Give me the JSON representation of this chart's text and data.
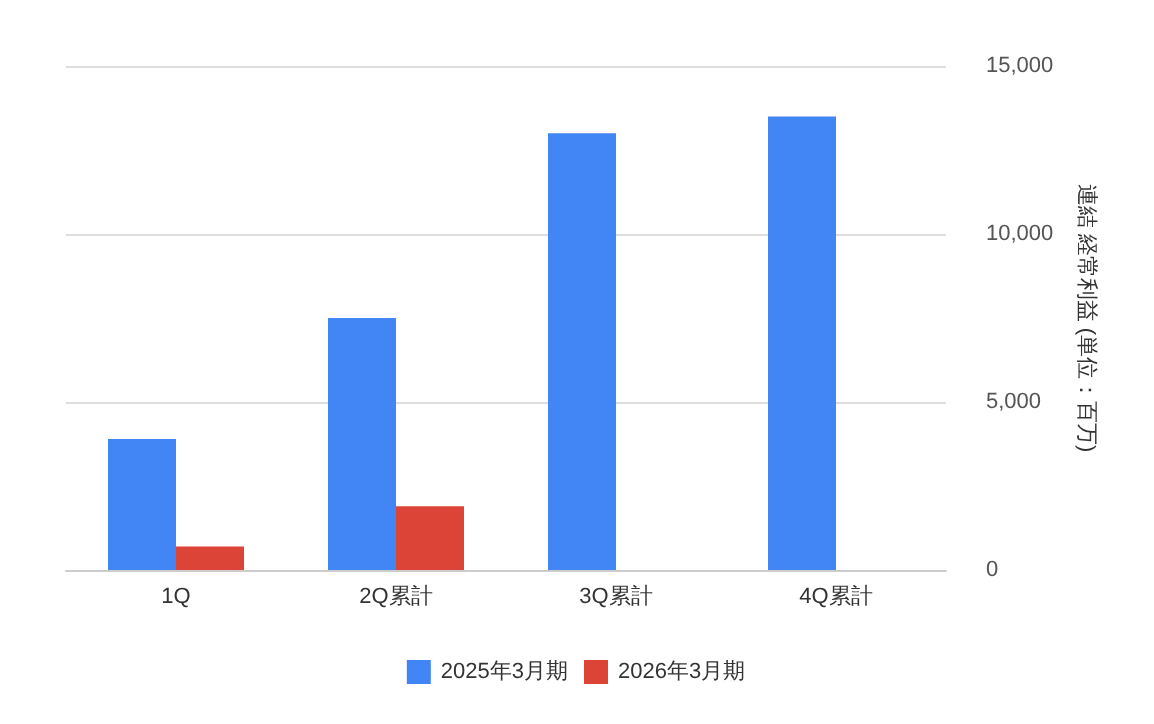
{
  "chart_data": {
    "type": "bar",
    "ylabel": "連結 経常利益 (単位：百万)",
    "categories": [
      "1Q",
      "2Q累計",
      "3Q累計",
      "4Q累計"
    ],
    "series": [
      {
        "name": "2025年3月期",
        "color": "#4285f4",
        "values": [
          3900,
          7500,
          13000,
          13500
        ]
      },
      {
        "name": "2026年3月期",
        "color": "#db4437",
        "values": [
          700,
          1900,
          null,
          null
        ]
      }
    ],
    "ylim": [
      0,
      15000
    ],
    "yticks": [
      {
        "value": 0,
        "label": "0"
      },
      {
        "value": 5000,
        "label": "5,000"
      },
      {
        "value": 10000,
        "label": "10,000"
      },
      {
        "value": 15000,
        "label": "15,000"
      }
    ],
    "grid": "y",
    "legend": "bottom"
  }
}
